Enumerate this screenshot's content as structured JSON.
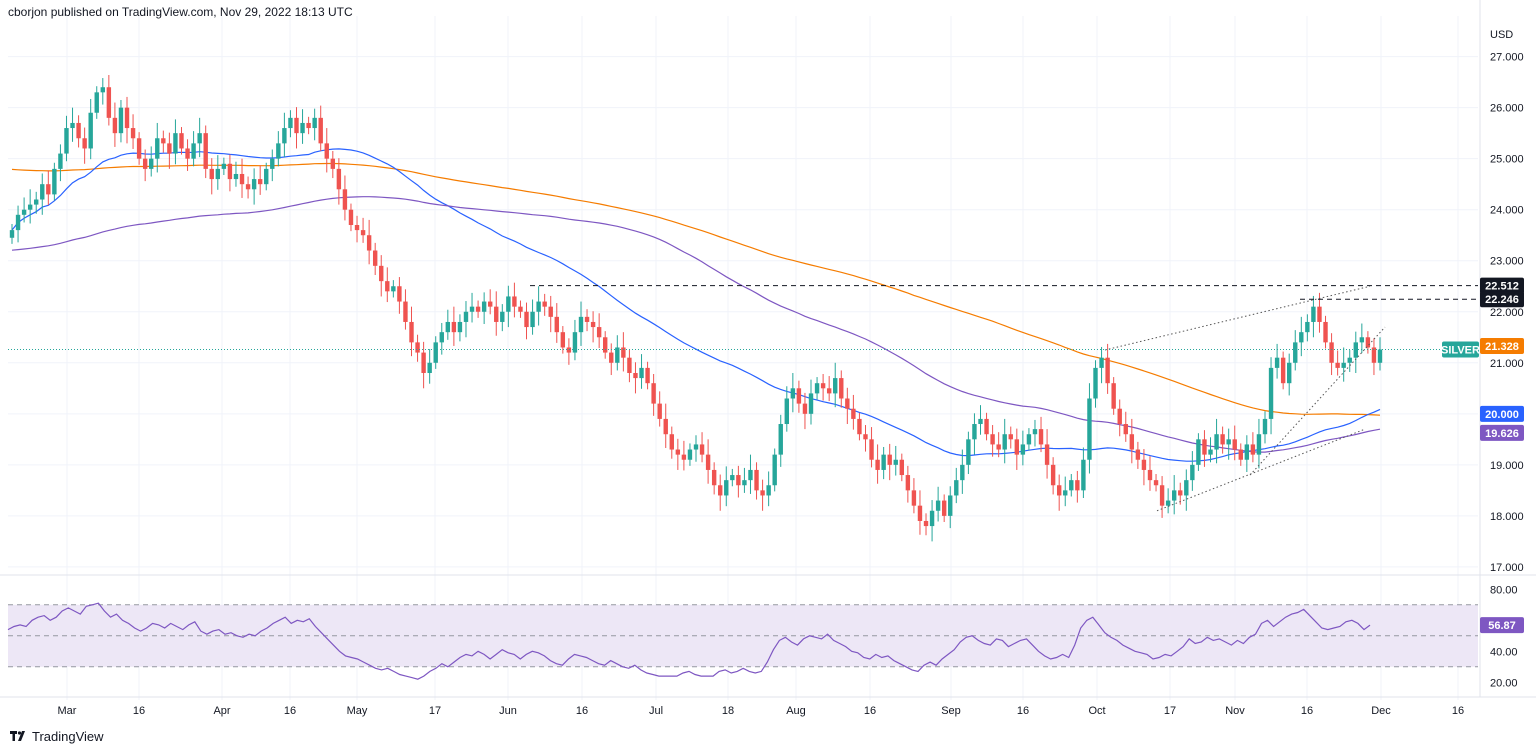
{
  "header": {
    "text": "cborjon published on TradingView.com, Nov 29, 2022 18:13 UTC"
  },
  "footer": {
    "brand": "TradingView"
  },
  "colors": {
    "up": "#26a69a",
    "down": "#ef5350",
    "ma_orange": "#f57c00",
    "ma_blue": "#2962ff",
    "ma_purple": "#7e57c2",
    "rsi": "#7e57c2",
    "rsi_band": "#ede7f6"
  },
  "chart_data": [
    {
      "type": "candlestick",
      "symbol": "SILVER",
      "currency": "USD",
      "ylim": [
        16.9,
        27.6
      ],
      "y_ticks": [
        "27.000",
        "26.000",
        "25.000",
        "24.000",
        "23.000",
        "22.000",
        "21.000",
        "20.000",
        "19.000",
        "18.000",
        "17.000"
      ],
      "x_ticks": [
        "Mar",
        "16",
        "Apr",
        "16",
        "May",
        "17",
        "Jun",
        "16",
        "Jul",
        "18",
        "Aug",
        "16",
        "Sep",
        "16",
        "Oct",
        "17",
        "Nov",
        "16",
        "Dec",
        "16"
      ],
      "price_tags": [
        {
          "label": "22.512",
          "value": 22.512,
          "style": "black"
        },
        {
          "label": "22.246",
          "value": 22.246,
          "style": "black"
        },
        {
          "label": "21.328",
          "value": 21.328,
          "style": "orange"
        },
        {
          "label": "SILVER",
          "value": 21.26,
          "style": "green"
        },
        {
          "label": "20.000",
          "value": 20.0,
          "style": "blue"
        },
        {
          "label": "19.626",
          "value": 19.626,
          "style": "purple"
        }
      ],
      "horizontal_levels": [
        22.512,
        22.246
      ],
      "last_price": 21.26,
      "closes": [
        23.6,
        23.9,
        24.0,
        24.1,
        24.2,
        24.5,
        24.3,
        24.8,
        25.1,
        25.6,
        25.7,
        25.4,
        25.2,
        25.9,
        26.3,
        26.4,
        25.8,
        25.5,
        26.0,
        25.6,
        25.4,
        25.0,
        24.8,
        25.0,
        25.4,
        25.3,
        25.1,
        25.5,
        25.2,
        25.0,
        25.3,
        25.5,
        24.8,
        24.6,
        24.8,
        24.9,
        24.6,
        24.7,
        24.5,
        24.4,
        24.6,
        24.5,
        24.8,
        25.0,
        25.3,
        25.6,
        25.8,
        25.5,
        25.7,
        25.6,
        25.8,
        25.3,
        25.0,
        24.8,
        24.4,
        24.0,
        23.7,
        23.6,
        23.5,
        23.2,
        22.9,
        22.6,
        22.4,
        22.5,
        22.2,
        21.8,
        21.4,
        21.2,
        20.8,
        21.0,
        21.4,
        21.6,
        21.8,
        21.6,
        21.8,
        22.0,
        22.1,
        22.0,
        22.2,
        22.1,
        21.8,
        22.0,
        22.3,
        22.1,
        22.0,
        21.7,
        22.0,
        22.2,
        22.1,
        21.9,
        21.6,
        21.3,
        21.2,
        21.6,
        21.9,
        21.8,
        21.7,
        21.5,
        21.2,
        21.0,
        21.3,
        21.1,
        20.8,
        20.7,
        20.9,
        20.6,
        20.2,
        19.9,
        19.6,
        19.3,
        19.2,
        19.1,
        19.3,
        19.4,
        19.2,
        18.9,
        18.6,
        18.4,
        18.7,
        18.8,
        18.6,
        18.7,
        18.9,
        18.5,
        18.4,
        18.6,
        19.2,
        19.8,
        20.3,
        20.5,
        20.2,
        20.0,
        20.4,
        20.6,
        20.5,
        20.4,
        20.7,
        20.3,
        20.1,
        19.9,
        19.6,
        19.5,
        19.1,
        18.9,
        19.2,
        19.0,
        19.1,
        18.8,
        18.5,
        18.2,
        17.9,
        17.8,
        18.1,
        18.3,
        18.0,
        18.4,
        18.7,
        19.0,
        19.5,
        19.8,
        19.9,
        19.6,
        19.4,
        19.3,
        19.6,
        19.5,
        19.2,
        19.4,
        19.6,
        19.7,
        19.4,
        19.0,
        18.6,
        18.4,
        18.5,
        18.7,
        18.5,
        19.1,
        20.3,
        20.9,
        21.1,
        20.6,
        20.1,
        19.8,
        19.6,
        19.3,
        19.1,
        18.9,
        18.7,
        18.6,
        18.2,
        18.3,
        18.5,
        18.4,
        18.7,
        19.0,
        19.5,
        19.2,
        19.3,
        19.6,
        19.4,
        19.5,
        19.3,
        19.1,
        19.4,
        19.2,
        19.6,
        19.9,
        20.9,
        21.1,
        20.6,
        21.0,
        21.4,
        21.6,
        21.8,
        22.1,
        21.8,
        21.4,
        21.0,
        20.9,
        21.0,
        21.1,
        21.4,
        21.5,
        21.3,
        21.0,
        21.26
      ]
    },
    {
      "type": "line",
      "indicator": "RSI",
      "ylim": [
        15,
        86
      ],
      "y_ticks": [
        "80.00",
        "40.00",
        "20.00"
      ],
      "last_value_label": "56.87",
      "last_value": 56.87,
      "band": [
        30,
        70
      ],
      "midline": 50,
      "values": [
        54,
        56,
        57,
        56,
        60,
        62,
        63,
        60,
        62,
        66,
        68,
        66,
        64,
        69,
        70,
        71,
        66,
        62,
        64,
        60,
        58,
        55,
        53,
        55,
        58,
        57,
        55,
        58,
        56,
        54,
        57,
        59,
        53,
        51,
        53,
        54,
        51,
        52,
        50,
        49,
        51,
        50,
        53,
        55,
        58,
        60,
        62,
        58,
        60,
        59,
        61,
        56,
        52,
        48,
        44,
        40,
        37,
        36,
        35,
        33,
        31,
        29,
        28,
        29,
        27,
        25,
        24,
        23,
        22,
        24,
        27,
        29,
        32,
        30,
        33,
        36,
        38,
        37,
        40,
        38,
        35,
        38,
        41,
        39,
        38,
        35,
        38,
        40,
        39,
        37,
        34,
        32,
        31,
        35,
        38,
        37,
        36,
        34,
        32,
        31,
        34,
        32,
        30,
        29,
        31,
        28,
        26,
        25,
        24,
        24,
        24,
        24,
        26,
        27,
        25,
        24,
        24,
        24,
        27,
        28,
        26,
        27,
        29,
        27,
        26,
        27,
        33,
        41,
        47,
        49,
        46,
        44,
        48,
        50,
        49,
        48,
        51,
        47,
        45,
        43,
        40,
        39,
        36,
        35,
        38,
        36,
        37,
        34,
        32,
        30,
        28,
        27,
        31,
        33,
        31,
        35,
        38,
        41,
        46,
        49,
        50,
        47,
        45,
        44,
        48,
        47,
        43,
        45,
        47,
        48,
        44,
        40,
        37,
        35,
        36,
        38,
        36,
        44,
        55,
        60,
        62,
        57,
        52,
        49,
        47,
        44,
        42,
        40,
        39,
        38,
        35,
        36,
        38,
        37,
        40,
        43,
        48,
        45,
        46,
        49,
        47,
        48,
        46,
        44,
        47,
        45,
        49,
        51,
        58,
        60,
        56,
        59,
        62,
        64,
        65,
        67,
        63,
        59,
        55,
        54,
        55,
        56,
        59,
        60,
        58,
        54,
        56.87
      ]
    }
  ]
}
